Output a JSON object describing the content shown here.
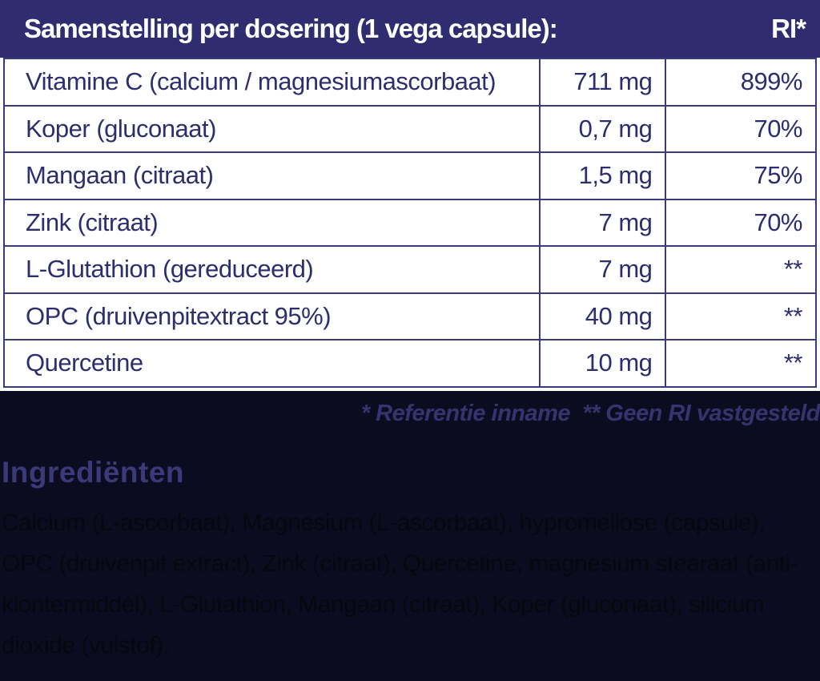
{
  "colors": {
    "header_bg": "#2f2d6f",
    "table_border": "#3b3a7d",
    "table_text": "#2e2d6e",
    "page_bg": "#0c0c20",
    "accent_text": "#3a3a7a",
    "body_text": "#07070f",
    "header_text": "#ffffff",
    "table_bg": "#ffffff"
  },
  "header": {
    "title": "Samenstelling per dosering (1 vega capsule):",
    "ri_label": "RI*"
  },
  "table": {
    "rows": [
      {
        "name": "Vitamine C (calcium / magnesiumascorbaat)",
        "amount": "711 mg",
        "ri": "899%"
      },
      {
        "name": "Koper (gluconaat)",
        "amount": "0,7 mg",
        "ri": "70%"
      },
      {
        "name": "Mangaan (citraat)",
        "amount": "1,5 mg",
        "ri": "75%"
      },
      {
        "name": "Zink (citraat)",
        "amount": "7 mg",
        "ri": "70%"
      },
      {
        "name": "L-Glutathion (gereduceerd)",
        "amount": "7 mg",
        "ri": "**"
      },
      {
        "name": "OPC (druivenpitextract 95%)",
        "amount": "40 mg",
        "ri": "**"
      },
      {
        "name": "Quercetine",
        "amount": "10 mg",
        "ri": "**"
      }
    ]
  },
  "footnote": "* Referentie inname  ** Geen RI vastgesteld",
  "ingredients": {
    "heading": "Ingrediënten",
    "text": "Calcium (L-ascorbaat), Magnesium (L-ascorbaat), hypromellose (capsule), OPC (druivenpit extract), Zink (citraat), Quercetine, magnesium stearaat (anti-klontermiddel), L-Glutathion, Mangaan (citraat), Koper (gluconaat), silicium dioxide (vulstof)."
  }
}
